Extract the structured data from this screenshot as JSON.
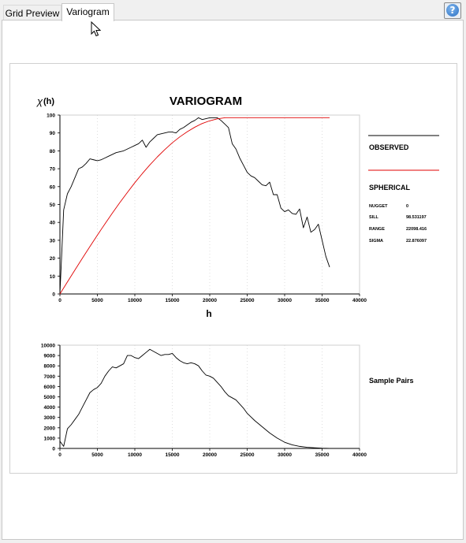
{
  "tabs": [
    {
      "label": "Grid Preview",
      "active": false
    },
    {
      "label": "Variogram",
      "active": true
    }
  ],
  "help_icon": "question-mark-icon",
  "colors": {
    "observed": "#000000",
    "spherical": "#e00000"
  },
  "variogram": {
    "title": "VARIOGRAM",
    "ylabel_symbol": "χ",
    "ylabel_suffix": "(h)",
    "xlabel": "h",
    "legend": {
      "observed": "OBSERVED",
      "spherical": "SPHERICAL"
    },
    "params": [
      {
        "label": "NUGGET",
        "value": "0"
      },
      {
        "label": "SILL",
        "value": "98.531197"
      },
      {
        "label": "RANGE",
        "value": "22098.416"
      },
      {
        "label": "SIGMA",
        "value": "22.876097"
      }
    ]
  },
  "pairs_label": "Sample Pairs",
  "chart_data": [
    {
      "type": "line",
      "title": "VARIOGRAM",
      "xlabel": "h",
      "ylabel": "χ (h)",
      "xlim": [
        0,
        40000
      ],
      "ylim": [
        0,
        100
      ],
      "xticks": [
        0,
        5000,
        10000,
        15000,
        20000,
        25000,
        30000,
        35000,
        40000
      ],
      "yticks": [
        0,
        10,
        20,
        30,
        40,
        50,
        60,
        70,
        80,
        90,
        100
      ],
      "series": [
        {
          "name": "OBSERVED",
          "x": [
            0,
            500,
            1000,
            1500,
            2000,
            2500,
            3000,
            3500,
            4000,
            4500,
            5000,
            5500,
            6000,
            6500,
            7000,
            7500,
            8000,
            8500,
            9000,
            9500,
            10000,
            10500,
            11000,
            11500,
            12000,
            12500,
            13000,
            13500,
            14000,
            14500,
            15000,
            15500,
            16000,
            16500,
            17000,
            17500,
            18000,
            18500,
            19000,
            19500,
            20000,
            20500,
            21000,
            21500,
            22000,
            22500,
            23000,
            23500,
            24000,
            24500,
            25000,
            25500,
            26000,
            26500,
            27000,
            27500,
            28000,
            28500,
            29000,
            29500,
            30000,
            30500,
            31000,
            31500,
            32000,
            32500,
            33000,
            33500,
            34000,
            34500,
            35000,
            35500,
            36000
          ],
          "values": [
            0,
            47,
            56,
            60,
            65,
            70,
            71,
            73,
            75.5,
            75,
            74.5,
            75,
            76,
            77,
            78,
            79,
            79.5,
            80,
            81,
            82,
            83,
            84,
            86,
            82,
            85,
            87,
            89,
            89.5,
            90,
            90.5,
            90.5,
            90,
            92,
            93,
            94.5,
            96,
            97,
            98.5,
            97.5,
            98,
            98.5,
            98.5,
            98.5,
            97,
            95,
            93,
            84,
            81,
            76,
            72,
            68,
            66,
            65,
            63,
            61,
            60.5,
            62.5,
            55.5,
            55.5,
            48,
            46,
            47,
            45,
            44.5,
            47.5,
            37,
            43,
            34.5,
            36,
            39,
            30,
            21,
            15
          ]
        },
        {
          "name": "SPHERICAL",
          "x": [
            0,
            1000,
            2000,
            3000,
            4000,
            5000,
            6000,
            7000,
            8000,
            9000,
            10000,
            11000,
            12000,
            13000,
            14000,
            15000,
            16000,
            17000,
            18000,
            19000,
            20000,
            21000,
            22098,
            25000,
            30000,
            35000,
            36000
          ],
          "values": [
            0,
            6.7,
            13.4,
            20.0,
            26.5,
            32.9,
            39.1,
            45.2,
            51.1,
            56.7,
            62.2,
            67.3,
            72.1,
            76.6,
            80.7,
            84.5,
            87.8,
            90.7,
            93.2,
            95.3,
            96.8,
            97.9,
            98.53,
            98.53,
            98.53,
            98.53,
            98.53
          ]
        }
      ]
    },
    {
      "type": "line",
      "title": "Sample Pairs",
      "xlim": [
        0,
        40000
      ],
      "ylim": [
        0,
        10000
      ],
      "xticks": [
        0,
        5000,
        10000,
        15000,
        20000,
        25000,
        30000,
        35000,
        40000
      ],
      "yticks": [
        0,
        1000,
        2000,
        3000,
        4000,
        5000,
        6000,
        7000,
        8000,
        9000,
        10000
      ],
      "series": [
        {
          "x": [
            0,
            500,
            1000,
            1500,
            2000,
            2500,
            3000,
            3500,
            4000,
            4500,
            5000,
            5500,
            6000,
            6500,
            7000,
            7500,
            8000,
            8500,
            9000,
            9500,
            10000,
            10500,
            11000,
            11500,
            12000,
            12500,
            13000,
            13500,
            14000,
            14500,
            15000,
            15500,
            16000,
            16500,
            17000,
            17500,
            18000,
            18500,
            19000,
            19500,
            20000,
            20500,
            21000,
            21500,
            22000,
            22500,
            23000,
            23500,
            24000,
            24500,
            25000,
            26000,
            27000,
            28000,
            29000,
            30000,
            31000,
            32000,
            33000,
            34000,
            35000,
            35500,
            36000
          ],
          "values": [
            700,
            200,
            1900,
            2300,
            2800,
            3300,
            4000,
            4700,
            5400,
            5700,
            5900,
            6300,
            7000,
            7500,
            7900,
            7800,
            8000,
            8200,
            9000,
            9000,
            8800,
            8700,
            9000,
            9300,
            9600,
            9400,
            9200,
            9000,
            9100,
            9100,
            9200,
            8800,
            8500,
            8300,
            8200,
            8300,
            8200,
            8000,
            7500,
            7100,
            7000,
            6800,
            6400,
            6000,
            5500,
            5100,
            4900,
            4700,
            4300,
            3900,
            3400,
            2700,
            2100,
            1500,
            1000,
            600,
            350,
            200,
            110,
            60,
            20,
            10,
            5
          ]
        }
      ]
    }
  ]
}
